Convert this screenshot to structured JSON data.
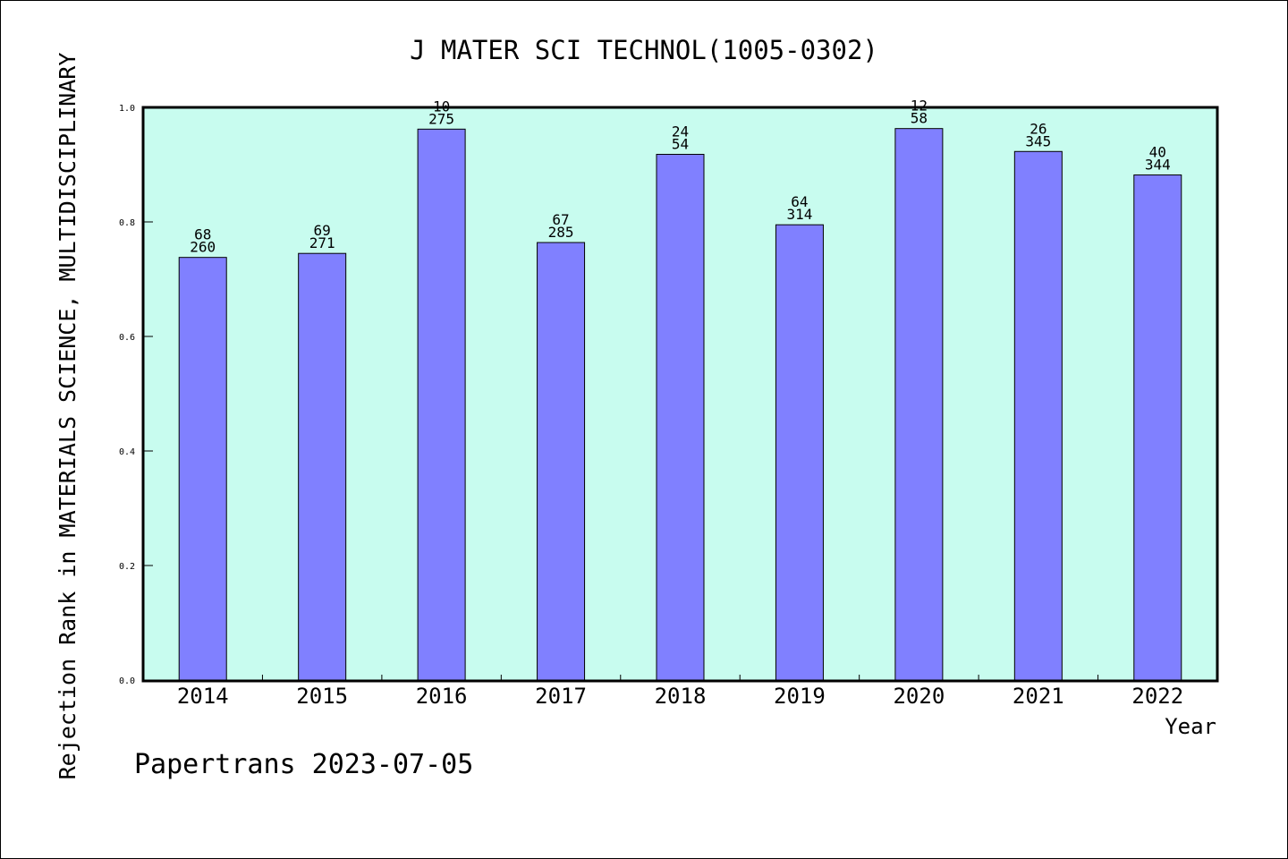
{
  "chart_data": {
    "type": "bar",
    "title": "J MATER SCI TECHNOL(1005-0302)",
    "xlabel": "Year",
    "ylabel": "Rejection Rank in MATERIALS SCIENCE, MULTIDISCIPLINARY",
    "categories": [
      "2014",
      "2015",
      "2016",
      "2017",
      "2018",
      "2019",
      "2020",
      "2021",
      "2022"
    ],
    "values": [
      0.738,
      0.745,
      0.962,
      0.764,
      0.918,
      0.795,
      0.963,
      0.923,
      0.882
    ],
    "label_top": [
      "68",
      "69",
      "10",
      "67",
      "24",
      "64",
      "12",
      "26",
      "40"
    ],
    "label_bottom": [
      "260",
      "271",
      "275",
      "285",
      "54",
      "314",
      "58",
      "345",
      "344"
    ],
    "ylim": [
      0,
      1.0
    ],
    "yticks": [
      "0.0",
      "0.2",
      "0.4",
      "0.6",
      "0.8",
      "1.0"
    ],
    "grid": false,
    "colors": {
      "plot_background": "#c8fcef",
      "bar_fill": "#8080ff",
      "bar_stroke": "#000000"
    }
  },
  "footer": {
    "credit": "Papertrans 2023-07-05"
  }
}
